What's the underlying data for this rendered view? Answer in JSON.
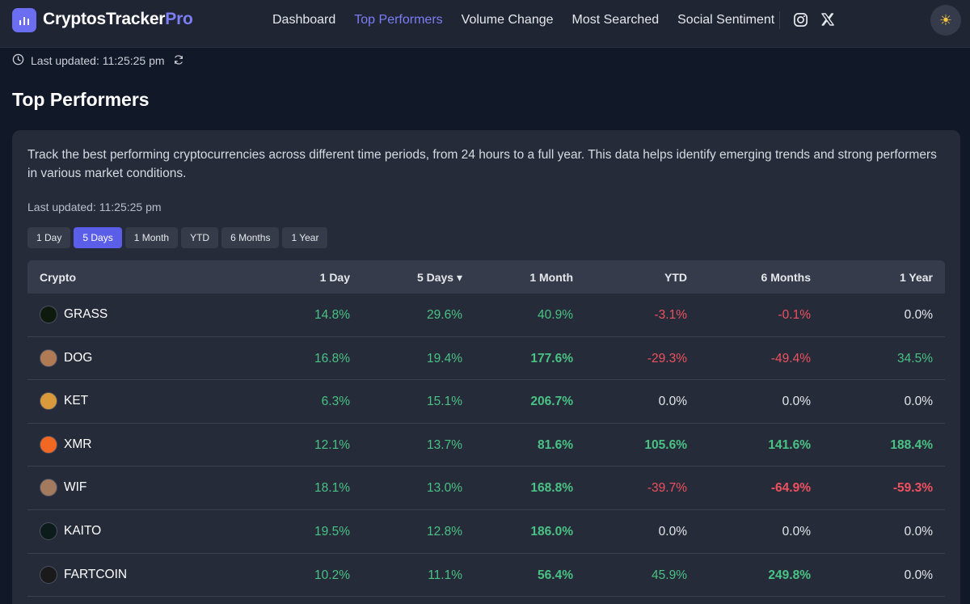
{
  "header": {
    "brand_main": "CryptosTracker",
    "brand_accent": "Pro",
    "nav": [
      {
        "label": "Dashboard",
        "active": false
      },
      {
        "label": "Top Performers",
        "active": true
      },
      {
        "label": "Volume Change",
        "active": false
      },
      {
        "label": "Most Searched",
        "active": false
      },
      {
        "label": "Social Sentiment",
        "active": false
      }
    ],
    "theme_icon": "☀"
  },
  "status": {
    "last_updated": "Last updated: 11:25:25 pm"
  },
  "page": {
    "title": "Top Performers",
    "description": "Track the best performing cryptocurrencies across different time periods, from 24 hours to a full year. This data helps identify emerging trends and strong performers in various market conditions.",
    "card_updated": "Last updated: 11:25:25 pm"
  },
  "tabs": [
    {
      "label": "1 Day",
      "active": false
    },
    {
      "label": "5 Days",
      "active": true
    },
    {
      "label": "1 Month",
      "active": false
    },
    {
      "label": "YTD",
      "active": false
    },
    {
      "label": "6 Months",
      "active": false
    },
    {
      "label": "1 Year",
      "active": false
    }
  ],
  "table": {
    "headers": [
      "Crypto",
      "1 Day",
      "5 Days ▾",
      "1 Month",
      "YTD",
      "6 Months",
      "1 Year"
    ],
    "rows": [
      {
        "name": "GRASS",
        "icon_color": "#0f1a0f",
        "values": [
          "14.8%",
          "29.6%",
          "40.9%",
          "-3.1%",
          "-0.1%",
          "0.0%"
        ]
      },
      {
        "name": "DOG",
        "icon_color": "#b07a55",
        "values": [
          "16.8%",
          "19.4%",
          "177.6%",
          "-29.3%",
          "-49.4%",
          "34.5%"
        ]
      },
      {
        "name": "KET",
        "icon_color": "#d89a3a",
        "values": [
          "6.3%",
          "15.1%",
          "206.7%",
          "0.0%",
          "0.0%",
          "0.0%"
        ]
      },
      {
        "name": "XMR",
        "icon_color": "#f26822",
        "values": [
          "12.1%",
          "13.7%",
          "81.6%",
          "105.6%",
          "141.6%",
          "188.4%"
        ]
      },
      {
        "name": "WIF",
        "icon_color": "#a37a5e",
        "values": [
          "18.1%",
          "13.0%",
          "168.8%",
          "-39.7%",
          "-64.9%",
          "-59.3%"
        ]
      },
      {
        "name": "KAITO",
        "icon_color": "#0c1c1a",
        "values": [
          "19.5%",
          "12.8%",
          "186.0%",
          "0.0%",
          "0.0%",
          "0.0%"
        ]
      },
      {
        "name": "FARTCOIN",
        "icon_color": "#1a1a1a",
        "values": [
          "10.2%",
          "11.1%",
          "56.4%",
          "45.9%",
          "249.8%",
          "0.0%"
        ]
      }
    ]
  }
}
